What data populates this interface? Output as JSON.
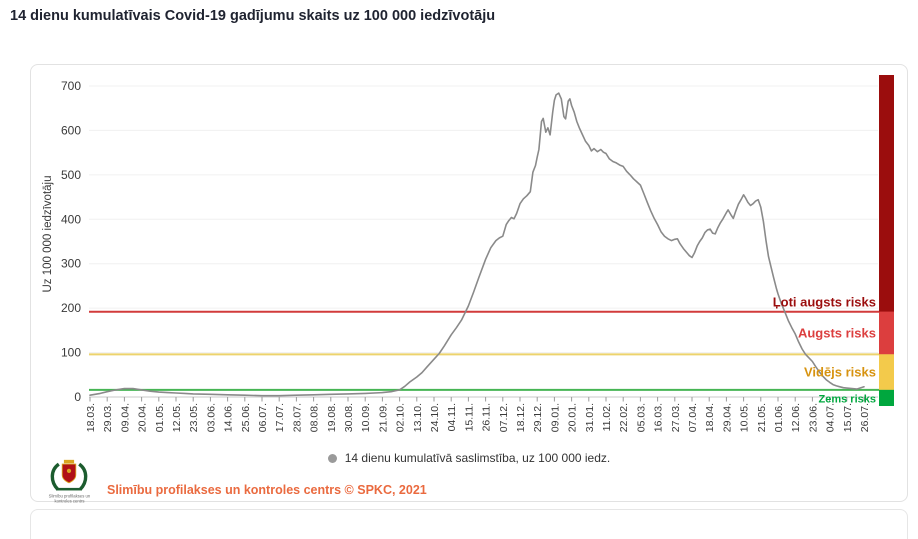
{
  "page": {
    "title": "14 dienu kumulatīvais Covid-19 gadījumu skaits uz 100 000 iedzīvotāju"
  },
  "legend": {
    "marker_color": "#9a9a9a",
    "label": "14 dienu kumulatīvā saslimstība, uz 100 000 iedz."
  },
  "footer": {
    "logo_caption_line1": "Slimību profilakses un",
    "logo_caption_line2": "kontroles centrs",
    "credit": "Slimību profilakses un kontroles centrs © SPKC, 2021",
    "credit_color": "#ea6a3f"
  },
  "chart_data": {
    "type": "line",
    "title": "14 dienu kumulatīvais Covid-19 gadījumu skaits uz 100 000 iedzīvotāju",
    "xlabel": "",
    "ylabel": "Uz 100 000 iedzīvotāju",
    "ylim": [
      0,
      700
    ],
    "yticks": [
      0,
      100,
      200,
      300,
      400,
      500,
      600,
      700
    ],
    "grid": true,
    "legend_position": "bottom",
    "x_tick_labels": [
      "18.03.",
      "29.03.",
      "09.04.",
      "20.04.",
      "01.05.",
      "12.05.",
      "23.05.",
      "03.06.",
      "14.06.",
      "25.06.",
      "06.07.",
      "17.07.",
      "28.07.",
      "08.08.",
      "19.08.",
      "30.08.",
      "10.09.",
      "21.09.",
      "02.10.",
      "13.10.",
      "24.10.",
      "04.11.",
      "15.11.",
      "26.11.",
      "07.12.",
      "18.12.",
      "29.12.",
      "09.01.",
      "20.01.",
      "31.01.",
      "11.02.",
      "22.02.",
      "05.03.",
      "16.03.",
      "27.03.",
      "07.04.",
      "18.04.",
      "29.04.",
      "10.05.",
      "21.05.",
      "01.06.",
      "12.06.",
      "23.06.",
      "04.07.",
      "15.07.",
      "26.07."
    ],
    "risk_bands": [
      {
        "label": "Ļoti augsts risks",
        "from": 192,
        "to": 700,
        "band_color": "#9b0d0d",
        "text_color": "#9b0d0d"
      },
      {
        "label": "Augsts risks",
        "from": 96,
        "to": 192,
        "band_color": "#dc3e3e",
        "text_color": "#dc3e3e",
        "line_color": "#d23b3b"
      },
      {
        "label": "Vidējs risks",
        "from": 16,
        "to": 96,
        "band_color": "#f3ca4b",
        "text_color": "#d79310",
        "line_color": "#ecd36d"
      },
      {
        "label": "Zems risks",
        "from": 0,
        "to": 16,
        "band_color": "#00a73e",
        "text_color": "#00a73e",
        "line_color": "#46b554"
      }
    ],
    "series": [
      {
        "name": "14 dienu kumulatīvā saslimstība, uz 100 000 iedz.",
        "color": "#8a8a8a",
        "points": [
          [
            0,
            4
          ],
          [
            0.6,
            8
          ],
          [
            1,
            12
          ],
          [
            1.5,
            16
          ],
          [
            2,
            19
          ],
          [
            2.5,
            19
          ],
          [
            3,
            16
          ],
          [
            3.5,
            13
          ],
          [
            4,
            11
          ],
          [
            4.5,
            10
          ],
          [
            5,
            9
          ],
          [
            5.5,
            8
          ],
          [
            6,
            7
          ],
          [
            7,
            6
          ],
          [
            8,
            5
          ],
          [
            9,
            4
          ],
          [
            10,
            3
          ],
          [
            11,
            3
          ],
          [
            12,
            4
          ],
          [
            13,
            5
          ],
          [
            14,
            6
          ],
          [
            15,
            7
          ],
          [
            16,
            8
          ],
          [
            17,
            10
          ],
          [
            17.5,
            12
          ],
          [
            18,
            16
          ],
          [
            18.3,
            24
          ],
          [
            18.6,
            34
          ],
          [
            19,
            45
          ],
          [
            19.3,
            55
          ],
          [
            19.6,
            68
          ],
          [
            20,
            85
          ],
          [
            20.3,
            98
          ],
          [
            20.6,
            115
          ],
          [
            21,
            140
          ],
          [
            21.3,
            156
          ],
          [
            21.6,
            173
          ],
          [
            22,
            205
          ],
          [
            22.3,
            236
          ],
          [
            22.6,
            268
          ],
          [
            23,
            310
          ],
          [
            23.3,
            336
          ],
          [
            23.6,
            352
          ],
          [
            23.8,
            358
          ],
          [
            24,
            362
          ],
          [
            24.2,
            388
          ],
          [
            24.35,
            397
          ],
          [
            24.5,
            404
          ],
          [
            24.65,
            401
          ],
          [
            24.8,
            413
          ],
          [
            25,
            435
          ],
          [
            25.2,
            446
          ],
          [
            25.4,
            453
          ],
          [
            25.6,
            462
          ],
          [
            25.75,
            506
          ],
          [
            25.9,
            521
          ],
          [
            26,
            540
          ],
          [
            26.1,
            557
          ],
          [
            26.25,
            620
          ],
          [
            26.35,
            627
          ],
          [
            26.5,
            596
          ],
          [
            26.62,
            606
          ],
          [
            26.75,
            590
          ],
          [
            26.9,
            641
          ],
          [
            27,
            668
          ],
          [
            27.1,
            680
          ],
          [
            27.25,
            684
          ],
          [
            27.4,
            671
          ],
          [
            27.55,
            631
          ],
          [
            27.65,
            626
          ],
          [
            27.8,
            666
          ],
          [
            27.9,
            671
          ],
          [
            28,
            656
          ],
          [
            28.15,
            641
          ],
          [
            28.3,
            620
          ],
          [
            28.45,
            606
          ],
          [
            28.6,
            593
          ],
          [
            28.8,
            576
          ],
          [
            29,
            566
          ],
          [
            29.15,
            554
          ],
          [
            29.3,
            559
          ],
          [
            29.5,
            552
          ],
          [
            29.7,
            557
          ],
          [
            29.85,
            551
          ],
          [
            30,
            548
          ],
          [
            30.2,
            536
          ],
          [
            30.4,
            530
          ],
          [
            30.6,
            527
          ],
          [
            30.8,
            522
          ],
          [
            31,
            519
          ],
          [
            31.2,
            508
          ],
          [
            31.4,
            500
          ],
          [
            31.6,
            491
          ],
          [
            31.8,
            484
          ],
          [
            32,
            477
          ],
          [
            32.2,
            458
          ],
          [
            32.4,
            438
          ],
          [
            32.6,
            419
          ],
          [
            32.8,
            402
          ],
          [
            33,
            388
          ],
          [
            33.2,
            372
          ],
          [
            33.4,
            362
          ],
          [
            33.6,
            356
          ],
          [
            33.8,
            352
          ],
          [
            34,
            355
          ],
          [
            34.15,
            356
          ],
          [
            34.3,
            345
          ],
          [
            34.5,
            334
          ],
          [
            34.7,
            325
          ],
          [
            34.85,
            318
          ],
          [
            35,
            314
          ],
          [
            35.15,
            325
          ],
          [
            35.3,
            340
          ],
          [
            35.45,
            350
          ],
          [
            35.6,
            358
          ],
          [
            35.75,
            370
          ],
          [
            35.9,
            376
          ],
          [
            36.05,
            378
          ],
          [
            36.2,
            369
          ],
          [
            36.35,
            367
          ],
          [
            36.5,
            381
          ],
          [
            36.65,
            392
          ],
          [
            36.8,
            401
          ],
          [
            37,
            415
          ],
          [
            37.1,
            421
          ],
          [
            37.25,
            411
          ],
          [
            37.4,
            402
          ],
          [
            37.55,
            419
          ],
          [
            37.7,
            434
          ],
          [
            37.85,
            444
          ],
          [
            38,
            455
          ],
          [
            38.1,
            449
          ],
          [
            38.25,
            438
          ],
          [
            38.4,
            431
          ],
          [
            38.55,
            435
          ],
          [
            38.7,
            441
          ],
          [
            38.85,
            444
          ],
          [
            39,
            427
          ],
          [
            39.15,
            395
          ],
          [
            39.3,
            352
          ],
          [
            39.45,
            316
          ],
          [
            39.6,
            292
          ],
          [
            39.75,
            268
          ],
          [
            39.9,
            245
          ],
          [
            40,
            232
          ],
          [
            40.2,
            210
          ],
          [
            40.4,
            191
          ],
          [
            40.6,
            172
          ],
          [
            40.8,
            156
          ],
          [
            41,
            142
          ],
          [
            41.2,
            124
          ],
          [
            41.4,
            108
          ],
          [
            41.6,
            96
          ],
          [
            41.8,
            88
          ],
          [
            42,
            80
          ],
          [
            42.2,
            68
          ],
          [
            42.4,
            57
          ],
          [
            42.6,
            47
          ],
          [
            42.8,
            39
          ],
          [
            43,
            33
          ],
          [
            43.2,
            28
          ],
          [
            43.4,
            25
          ],
          [
            43.6,
            23
          ],
          [
            43.8,
            21
          ],
          [
            44,
            20
          ],
          [
            44.3,
            19
          ],
          [
            44.6,
            18
          ],
          [
            45,
            23
          ]
        ]
      }
    ]
  }
}
